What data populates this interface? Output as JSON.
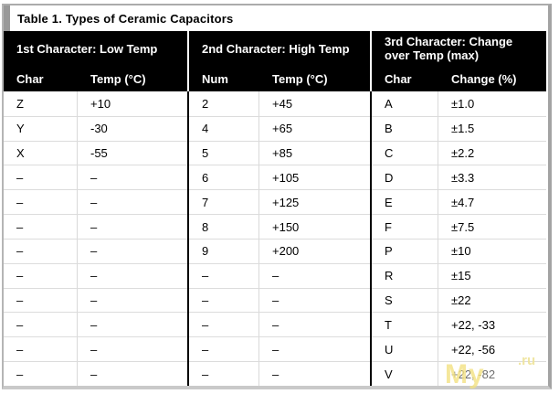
{
  "title": "Table 1. Types of Ceramic Capacitors",
  "sections": [
    {
      "title": "1st Character: Low Temp",
      "col1": "Char",
      "col2": "Temp (°C)"
    },
    {
      "title": "2nd Character: High Temp",
      "col1": "Num",
      "col2": "Temp (°C)"
    },
    {
      "title": "3rd Character: Change over Temp (max)",
      "col1": "Char",
      "col2": "Change (%)"
    }
  ],
  "rows": [
    [
      "Z",
      "+10",
      "2",
      "+45",
      "A",
      "±1.0"
    ],
    [
      "Y",
      "-30",
      "4",
      "+65",
      "B",
      "±1.5"
    ],
    [
      "X",
      "-55",
      "5",
      "+85",
      "C",
      "±2.2"
    ],
    [
      "–",
      "–",
      "6",
      "+105",
      "D",
      "±3.3"
    ],
    [
      "–",
      "–",
      "7",
      "+125",
      "E",
      "±4.7"
    ],
    [
      "–",
      "–",
      "8",
      "+150",
      "F",
      "±7.5"
    ],
    [
      "–",
      "–",
      "9",
      "+200",
      "P",
      "±10"
    ],
    [
      "–",
      "–",
      "–",
      "–",
      "R",
      "±15"
    ],
    [
      "–",
      "–",
      "–",
      "–",
      "S",
      "±22"
    ],
    [
      "–",
      "–",
      "–",
      "–",
      "T",
      "+22, -33"
    ],
    [
      "–",
      "–",
      "–",
      "–",
      "U",
      "+22, -56"
    ],
    [
      "–",
      "–",
      "–",
      "–",
      "V",
      "+22, -82"
    ]
  ],
  "watermark": {
    "main": "My",
    "suffix": ".ru"
  },
  "colors": {
    "header_bg": "#000000",
    "header_text": "#ffffff",
    "title_strip": "#999999",
    "grid_line": "#d9d9d9",
    "section_divider": "#000000",
    "outer_border": "#ababab",
    "watermark": "#f3e283"
  }
}
